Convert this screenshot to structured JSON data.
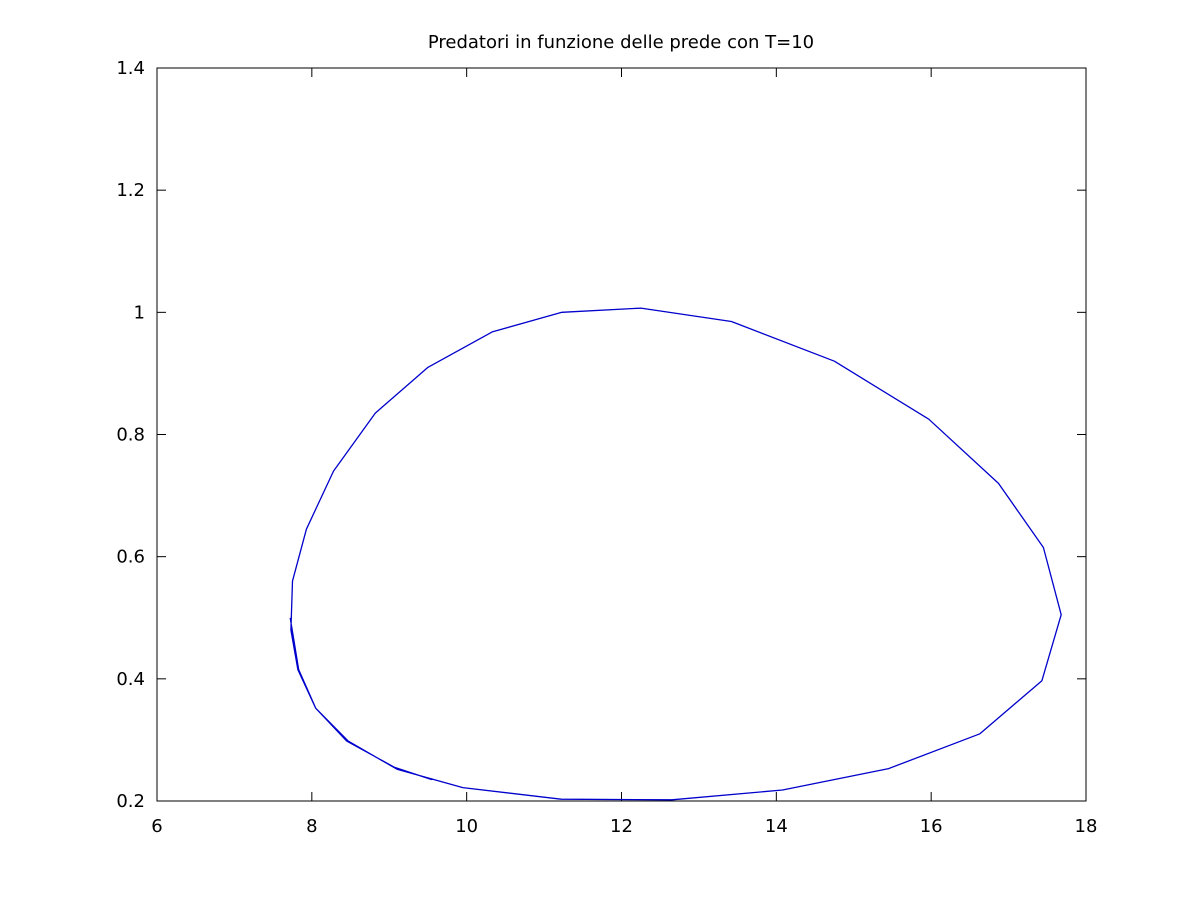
{
  "chart_data": {
    "type": "line",
    "title": "Predatori in funzione delle prede con T=10",
    "xlabel": "",
    "ylabel": "",
    "xlim": [
      6,
      18
    ],
    "ylim": [
      0.2,
      1.4
    ],
    "x_ticks": [
      6,
      8,
      10,
      12,
      14,
      16,
      18
    ],
    "y_ticks": [
      0.2,
      0.4,
      0.6,
      0.8,
      1,
      1.2,
      1.4
    ],
    "x_tick_labels": [
      "6",
      "8",
      "10",
      "12",
      "14",
      "16",
      "18"
    ],
    "y_tick_labels": [
      "0.2",
      "0.4",
      "0.6",
      "0.8",
      "1",
      "1.2",
      "1.4"
    ],
    "grid": false,
    "series": [
      {
        "color": "#0000cc",
        "points": [
          [
            9.55,
            0.235
          ],
          [
            9.07,
            0.255
          ],
          [
            8.45,
            0.298
          ],
          [
            8.05,
            0.352
          ],
          [
            7.82,
            0.415
          ],
          [
            7.73,
            0.48
          ],
          [
            7.75,
            0.56
          ],
          [
            7.93,
            0.645
          ],
          [
            8.28,
            0.74
          ],
          [
            8.82,
            0.835
          ],
          [
            9.5,
            0.91
          ],
          [
            10.33,
            0.968
          ],
          [
            11.23,
            1.0
          ],
          [
            12.25,
            1.007
          ],
          [
            13.42,
            0.985
          ],
          [
            14.75,
            0.92
          ],
          [
            15.97,
            0.825
          ],
          [
            16.87,
            0.72
          ],
          [
            17.45,
            0.615
          ],
          [
            17.68,
            0.505
          ],
          [
            17.43,
            0.397
          ],
          [
            16.63,
            0.31
          ],
          [
            15.45,
            0.253
          ],
          [
            14.08,
            0.218
          ],
          [
            12.65,
            0.202
          ],
          [
            11.22,
            0.203
          ],
          [
            9.95,
            0.222
          ],
          [
            9.1,
            0.252
          ],
          [
            8.47,
            0.298
          ],
          [
            8.05,
            0.352
          ],
          [
            7.83,
            0.415
          ],
          [
            7.72,
            0.5
          ]
        ]
      }
    ]
  }
}
